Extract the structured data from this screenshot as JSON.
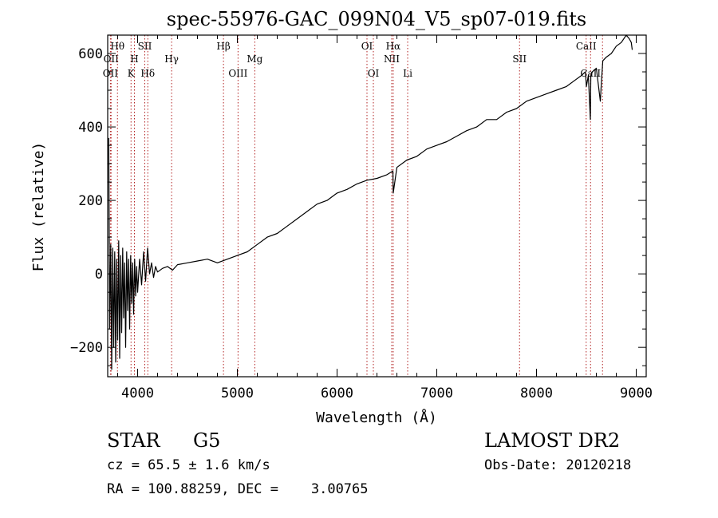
{
  "chart_data": {
    "type": "line",
    "title": "spec-55976-GAC_099N04_V5_sp07-019.fits",
    "xlabel": "Wavelength (Å)",
    "ylabel": "Flux (relative)",
    "xlim": [
      3700,
      9100
    ],
    "ylim": [
      -280,
      650
    ],
    "xticks": [
      4000,
      5000,
      6000,
      7000,
      8000,
      9000
    ],
    "yticks": [
      -200,
      0,
      200,
      400,
      600
    ],
    "line_color": "#000000",
    "marker_color": "#b22222",
    "grid": false,
    "series": [
      {
        "x": [
          3710,
          3720,
          3730,
          3740,
          3750,
          3760,
          3770,
          3780,
          3790,
          3800,
          3810,
          3820,
          3830,
          3840,
          3850,
          3860,
          3870,
          3880,
          3890,
          3900,
          3910,
          3920,
          3930,
          3940,
          3950,
          3960,
          3970,
          3980,
          3990,
          4000,
          4020,
          4040,
          4060,
          4080,
          4100,
          4120,
          4140,
          4160,
          4180,
          4200,
          4250,
          4300,
          4350,
          4400,
          4500,
          4600,
          4700,
          4800,
          4900,
          5000,
          5100,
          5200,
          5300,
          5400,
          5500,
          5600,
          5700,
          5800,
          5900,
          6000,
          6100,
          6200,
          6300,
          6400,
          6500,
          6560,
          6563,
          6600,
          6700,
          6800,
          6900,
          7000,
          7100,
          7200,
          7300,
          7400,
          7500,
          7600,
          7700,
          7800,
          7900,
          8000,
          8100,
          8200,
          8300,
          8400,
          8450,
          8490,
          8500,
          8520,
          8540,
          8545,
          8560,
          8600,
          8640,
          8650,
          8665,
          8700,
          8750,
          8800,
          8850,
          8900,
          8930,
          8950,
          8960
        ],
        "y": [
          370,
          -150,
          80,
          -260,
          70,
          -200,
          60,
          -240,
          40,
          -180,
          90,
          -230,
          50,
          -160,
          70,
          -120,
          30,
          -200,
          60,
          -100,
          40,
          -150,
          50,
          -80,
          30,
          -110,
          40,
          -60,
          20,
          -50,
          40,
          -30,
          60,
          -20,
          70,
          0,
          30,
          -10,
          20,
          5,
          15,
          20,
          10,
          25,
          30,
          35,
          40,
          30,
          40,
          50,
          60,
          80,
          100,
          110,
          130,
          150,
          170,
          190,
          200,
          220,
          230,
          245,
          255,
          260,
          270,
          280,
          220,
          290,
          310,
          320,
          340,
          350,
          360,
          375,
          390,
          400,
          420,
          420,
          440,
          450,
          470,
          480,
          490,
          500,
          510,
          530,
          540,
          550,
          510,
          540,
          420,
          540,
          550,
          560,
          470,
          520,
          580,
          590,
          600,
          620,
          630,
          650,
          640,
          630,
          610
        ]
      }
    ],
    "line_markers": [
      {
        "x": 3727,
        "label": "OII",
        "row": 3
      },
      {
        "x": 3734,
        "label": "OII",
        "row": 2
      },
      {
        "x": 3798,
        "label": "Hθ",
        "row": 1
      },
      {
        "x": 3934,
        "label": "K",
        "row": 3
      },
      {
        "x": 3968,
        "label": "H",
        "row": 2
      },
      {
        "x": 4072,
        "label": "SII",
        "row": 1
      },
      {
        "x": 4102,
        "label": "Hδ",
        "row": 3
      },
      {
        "x": 4341,
        "label": "Hγ",
        "row": 2
      },
      {
        "x": 4861,
        "label": "Hβ",
        "row": 1
      },
      {
        "x": 5007,
        "label": "OIII",
        "row": 3
      },
      {
        "x": 5175,
        "label": "Mg",
        "row": 2
      },
      {
        "x": 6300,
        "label": "OI",
        "row": 1
      },
      {
        "x": 6364,
        "label": "OI",
        "row": 3
      },
      {
        "x": 6548,
        "label": "NII",
        "row": 2
      },
      {
        "x": 6563,
        "label": "Hα",
        "row": 1
      },
      {
        "x": 6708,
        "label": "Li",
        "row": 3
      },
      {
        "x": 7830,
        "label": "SII",
        "row": 2
      },
      {
        "x": 8498,
        "label": "CaII",
        "row": 1
      },
      {
        "x": 8542,
        "label": "CaII",
        "row": 3
      },
      {
        "x": 8662,
        "label": "",
        "row": 0
      }
    ]
  },
  "info": {
    "object_class": "STAR",
    "subclass": "G5",
    "survey": "LAMOST DR2",
    "redshift": "cz = 65.5 ± 1.6 km/s",
    "obs_date": "Obs-Date: 20120218",
    "coords": "RA = 100.88259, DEC =    3.00765"
  }
}
